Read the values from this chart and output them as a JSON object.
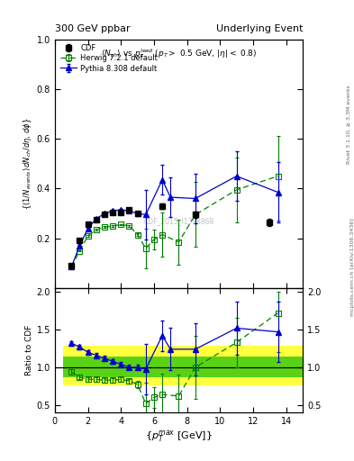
{
  "title_left": "300 GeV ppbar",
  "title_right": "Underlying Event",
  "watermark": "CDF_2015_I1388868",
  "cdf_x": [
    1.0,
    1.5,
    2.0,
    2.5,
    3.0,
    3.5,
    4.0,
    4.5,
    5.0,
    6.5,
    8.5,
    13.0
  ],
  "cdf_y": [
    0.09,
    0.19,
    0.255,
    0.275,
    0.295,
    0.305,
    0.305,
    0.315,
    0.3,
    0.33,
    0.295,
    0.265
  ],
  "cdf_yerr": [
    0.005,
    0.008,
    0.007,
    0.007,
    0.007,
    0.007,
    0.007,
    0.007,
    0.007,
    0.01,
    0.012,
    0.015
  ],
  "herwig_x": [
    1.0,
    1.5,
    2.0,
    2.5,
    3.0,
    3.5,
    4.0,
    4.5,
    5.0,
    5.5,
    6.0,
    6.5,
    7.5,
    8.5,
    11.0,
    13.5
  ],
  "herwig_y": [
    0.085,
    0.15,
    0.21,
    0.235,
    0.245,
    0.25,
    0.255,
    0.25,
    0.215,
    0.16,
    0.195,
    0.215,
    0.185,
    0.295,
    0.395,
    0.45
  ],
  "herwig_yerr_lo": [
    0.003,
    0.003,
    0.003,
    0.003,
    0.003,
    0.003,
    0.003,
    0.003,
    0.005,
    0.08,
    0.04,
    0.09,
    0.09,
    0.13,
    0.13,
    0.18
  ],
  "herwig_yerr_hi": [
    0.003,
    0.003,
    0.003,
    0.003,
    0.003,
    0.003,
    0.003,
    0.003,
    0.005,
    0.08,
    0.04,
    0.09,
    0.09,
    0.13,
    0.13,
    0.16
  ],
  "pythia_x": [
    1.0,
    1.5,
    2.0,
    2.5,
    3.0,
    3.5,
    4.0,
    4.5,
    5.0,
    5.5,
    6.5,
    7.0,
    8.5,
    11.0,
    13.5
  ],
  "pythia_y": [
    0.085,
    0.17,
    0.24,
    0.278,
    0.3,
    0.31,
    0.315,
    0.31,
    0.3,
    0.295,
    0.435,
    0.365,
    0.36,
    0.45,
    0.385
  ],
  "pythia_yerr_lo": [
    0.003,
    0.003,
    0.003,
    0.003,
    0.003,
    0.003,
    0.003,
    0.003,
    0.003,
    0.1,
    0.06,
    0.08,
    0.1,
    0.1,
    0.12
  ],
  "pythia_yerr_hi": [
    0.003,
    0.003,
    0.003,
    0.003,
    0.003,
    0.003,
    0.003,
    0.003,
    0.003,
    0.1,
    0.06,
    0.08,
    0.1,
    0.1,
    0.12
  ],
  "herwig_ratio_x": [
    1.0,
    1.5,
    2.0,
    2.5,
    3.0,
    3.5,
    4.0,
    4.5,
    5.0,
    5.5,
    6.0,
    6.5,
    7.5,
    8.5,
    11.0,
    13.5
  ],
  "herwig_ratio_y": [
    0.94,
    0.87,
    0.84,
    0.84,
    0.83,
    0.83,
    0.84,
    0.82,
    0.775,
    0.52,
    0.6,
    0.64,
    0.62,
    1.0,
    1.33,
    1.72
  ],
  "herwig_ratio_yerr_lo": [
    0.03,
    0.03,
    0.03,
    0.03,
    0.03,
    0.03,
    0.03,
    0.03,
    0.05,
    0.28,
    0.14,
    0.28,
    0.28,
    0.42,
    0.33,
    0.52
  ],
  "herwig_ratio_yerr_hi": [
    0.03,
    0.03,
    0.03,
    0.03,
    0.03,
    0.03,
    0.03,
    0.03,
    0.05,
    0.28,
    0.14,
    0.28,
    0.28,
    0.42,
    0.33,
    0.28
  ],
  "pythia_ratio_x": [
    1.0,
    1.5,
    2.0,
    2.5,
    3.0,
    3.5,
    4.0,
    4.5,
    5.0,
    5.5,
    6.5,
    7.0,
    8.5,
    11.0,
    13.5
  ],
  "pythia_ratio_y": [
    1.32,
    1.27,
    1.2,
    1.16,
    1.12,
    1.08,
    1.04,
    1.0,
    1.0,
    0.975,
    1.42,
    1.24,
    1.24,
    1.52,
    1.47
  ],
  "pythia_ratio_yerr_lo": [
    0.03,
    0.03,
    0.03,
    0.03,
    0.03,
    0.03,
    0.03,
    0.03,
    0.03,
    0.33,
    0.2,
    0.28,
    0.35,
    0.35,
    0.4
  ],
  "pythia_ratio_yerr_hi": [
    0.03,
    0.03,
    0.03,
    0.03,
    0.03,
    0.03,
    0.03,
    0.03,
    0.03,
    0.33,
    0.2,
    0.28,
    0.35,
    0.35,
    0.4
  ],
  "xlim": [
    0.5,
    15.0
  ],
  "ylim_main": [
    0.0,
    1.0
  ],
  "ylim_ratio": [
    0.4,
    2.05
  ],
  "yticks_main": [
    0.0,
    0.2,
    0.4,
    0.6,
    0.8,
    1.0
  ],
  "yticks_ratio": [
    0.5,
    1.0,
    1.5,
    2.0
  ],
  "xticks": [
    0,
    2,
    4,
    6,
    8,
    10,
    12,
    14
  ],
  "color_cdf": "#000000",
  "color_herwig": "#008000",
  "color_pythia": "#0000cc",
  "color_yellow": "#ffff00",
  "color_green": "#00bb00",
  "band_segs": [
    {
      "xlo": 0.5,
      "xhi": 5.5,
      "ylo_y": 0.76,
      "yhi_y": 1.29,
      "ylo_g": 0.87,
      "yhi_g": 1.14
    },
    {
      "xlo": 5.5,
      "xhi": 8.5,
      "ylo_y": 0.76,
      "yhi_y": 1.29,
      "ylo_g": 0.87,
      "yhi_g": 1.14
    },
    {
      "xlo": 8.5,
      "xhi": 15.0,
      "ylo_y": 0.76,
      "yhi_y": 1.29,
      "ylo_g": 0.87,
      "yhi_g": 1.14
    }
  ]
}
